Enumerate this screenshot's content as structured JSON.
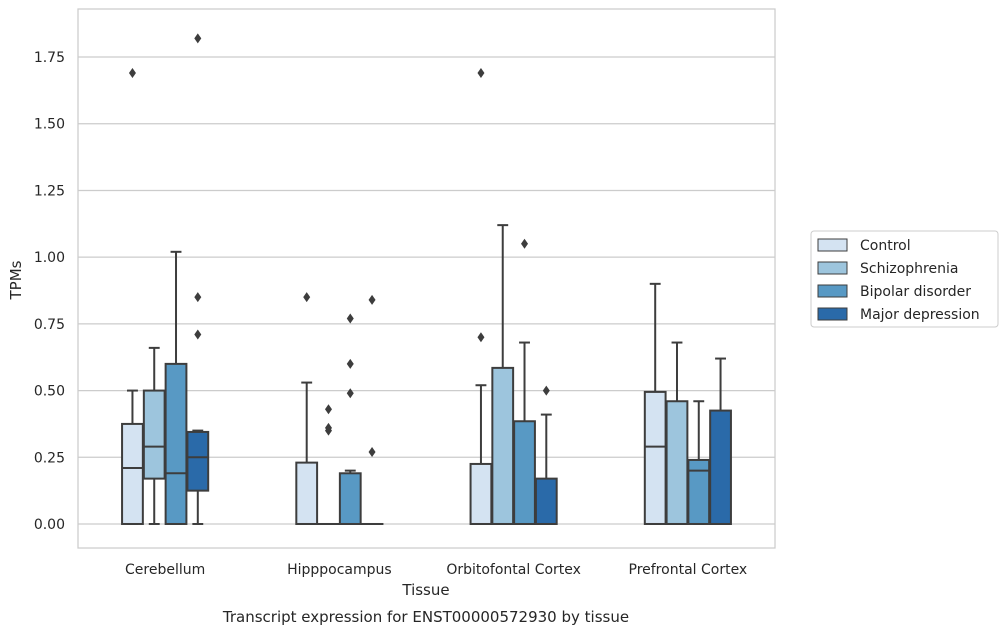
{
  "chart_data": {
    "type": "boxplot",
    "title": "Transcript expression for ENST00000572930 by tissue",
    "xlabel": "Tissue",
    "ylabel": "TPMs",
    "ylim": [
      -0.09,
      1.93
    ],
    "yticks": [
      "0.00",
      "0.25",
      "0.50",
      "0.75",
      "1.00",
      "1.25",
      "1.50",
      "1.75"
    ],
    "grid": "horizontal",
    "legend_position": "right",
    "categories": [
      "Cerebellum",
      "Hipppocampus",
      "Orbitofontal Cortex",
      "Prefrontal Cortex"
    ],
    "series": [
      {
        "name": "Control",
        "color": "#d4e3f2",
        "boxes": [
          {
            "q1": 0.0,
            "median": 0.21,
            "q3": 0.375,
            "whislo": 0.0,
            "whishi": 0.5,
            "fliers": [
              1.69
            ]
          },
          {
            "q1": 0.0,
            "median": 0.0,
            "q3": 0.23,
            "whislo": 0.0,
            "whishi": 0.53,
            "fliers": [
              0.85
            ]
          },
          {
            "q1": 0.0,
            "median": 0.0,
            "q3": 0.225,
            "whislo": 0.0,
            "whishi": 0.52,
            "fliers": [
              0.7,
              1.69
            ]
          },
          {
            "q1": 0.0,
            "median": 0.29,
            "q3": 0.495,
            "whislo": 0.0,
            "whishi": 0.9,
            "fliers": []
          }
        ]
      },
      {
        "name": "Schizophrenia",
        "color": "#9dc5dd",
        "boxes": [
          {
            "q1": 0.17,
            "median": 0.29,
            "q3": 0.5,
            "whislo": 0.0,
            "whishi": 0.66,
            "fliers": []
          },
          {
            "q1": 0.0,
            "median": 0.0,
            "q3": 0.0,
            "whislo": 0.0,
            "whishi": 0.0,
            "fliers": [
              0.35,
              0.36,
              0.43
            ]
          },
          {
            "q1": 0.0,
            "median": 0.0,
            "q3": 0.585,
            "whislo": 0.0,
            "whishi": 1.12,
            "fliers": []
          },
          {
            "q1": 0.0,
            "median": 0.0,
            "q3": 0.46,
            "whislo": 0.0,
            "whishi": 0.68,
            "fliers": []
          }
        ]
      },
      {
        "name": "Bipolar disorder",
        "color": "#5899c4",
        "boxes": [
          {
            "q1": 0.0,
            "median": 0.19,
            "q3": 0.6,
            "whislo": 0.0,
            "whishi": 1.02,
            "fliers": []
          },
          {
            "q1": 0.0,
            "median": 0.0,
            "q3": 0.19,
            "whislo": 0.0,
            "whishi": 0.2,
            "fliers": [
              0.49,
              0.6,
              0.77
            ]
          },
          {
            "q1": 0.0,
            "median": 0.0,
            "q3": 0.385,
            "whislo": 0.0,
            "whishi": 0.68,
            "fliers": [
              1.05
            ]
          },
          {
            "q1": 0.0,
            "median": 0.2,
            "q3": 0.24,
            "whislo": 0.0,
            "whishi": 0.46,
            "fliers": []
          }
        ]
      },
      {
        "name": "Major depression",
        "color": "#2a6aa9",
        "boxes": [
          {
            "q1": 0.125,
            "median": 0.25,
            "q3": 0.345,
            "whislo": 0.0,
            "whishi": 0.35,
            "fliers": [
              0.71,
              0.85,
              1.82
            ]
          },
          {
            "q1": 0.0,
            "median": 0.0,
            "q3": 0.0,
            "whislo": 0.0,
            "whishi": 0.0,
            "fliers": [
              0.27,
              0.84
            ]
          },
          {
            "q1": 0.0,
            "median": 0.0,
            "q3": 0.17,
            "whislo": 0.0,
            "whishi": 0.41,
            "fliers": [
              0.5
            ]
          },
          {
            "q1": 0.0,
            "median": 0.0,
            "q3": 0.425,
            "whislo": 0.0,
            "whishi": 0.62,
            "fliers": []
          }
        ]
      }
    ]
  }
}
